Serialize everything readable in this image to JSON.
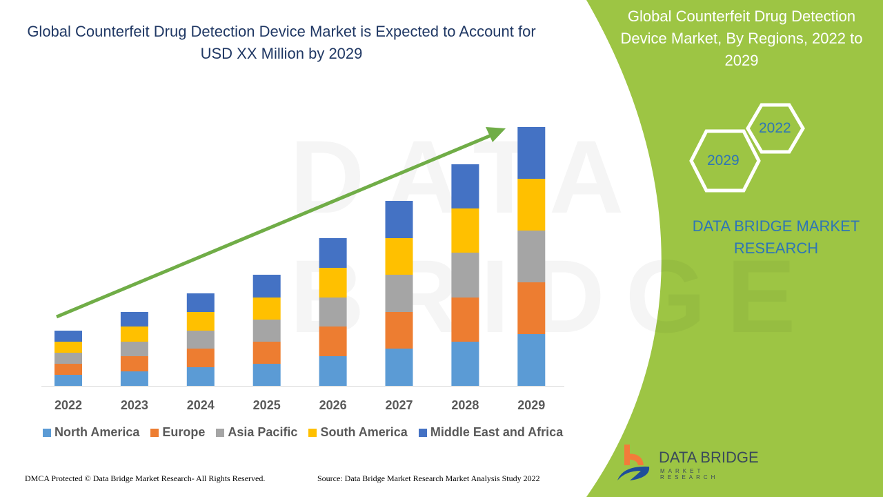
{
  "header": {
    "title": "Global Counterfeit Drug Detection Device Market is Expected to Account for USD XX Million by 2029"
  },
  "side": {
    "title": "Global Counterfeit Drug Detection Device Market, By Regions, 2022 to 2029",
    "hex_a": "2022",
    "hex_b": "2029",
    "brand": "DATA BRIDGE MARKET RESEARCH"
  },
  "logo": {
    "name": "DATA BRIDGE",
    "sub": "MARKET RESEARCH"
  },
  "watermark": "DATA BRIDGE",
  "footer": {
    "left": "DMCA Protected © Data Bridge Market Research- All Rights Reserved.",
    "right": "Source: Data Bridge Market Research Market Analysis Study 2022"
  },
  "colors": {
    "panel": "#9dc544",
    "arrow": "#70ad47"
  },
  "chart_data": {
    "type": "bar",
    "stacked": true,
    "title": "",
    "xlabel": "",
    "ylabel": "",
    "grid": false,
    "legend": "bottom",
    "trend_arrow": true,
    "categories": [
      "2022",
      "2023",
      "2024",
      "2025",
      "2026",
      "2027",
      "2028",
      "2029"
    ],
    "series": [
      {
        "name": "North America",
        "color": "#5b9bd5",
        "values": [
          16,
          21,
          27,
          32,
          43,
          54,
          64,
          75
        ]
      },
      {
        "name": "Europe",
        "color": "#ed7d31",
        "values": [
          16,
          22,
          27,
          32,
          43,
          53,
          64,
          75
        ]
      },
      {
        "name": "Asia Pacific",
        "color": "#a5a5a5",
        "values": [
          16,
          21,
          26,
          32,
          42,
          54,
          65,
          75
        ]
      },
      {
        "name": "South America",
        "color": "#ffc000",
        "values": [
          16,
          22,
          27,
          32,
          43,
          53,
          64,
          75
        ]
      },
      {
        "name": "Middle East and Africa",
        "color": "#4472c4",
        "values": [
          16,
          21,
          27,
          33,
          43,
          54,
          64,
          75
        ]
      }
    ]
  }
}
